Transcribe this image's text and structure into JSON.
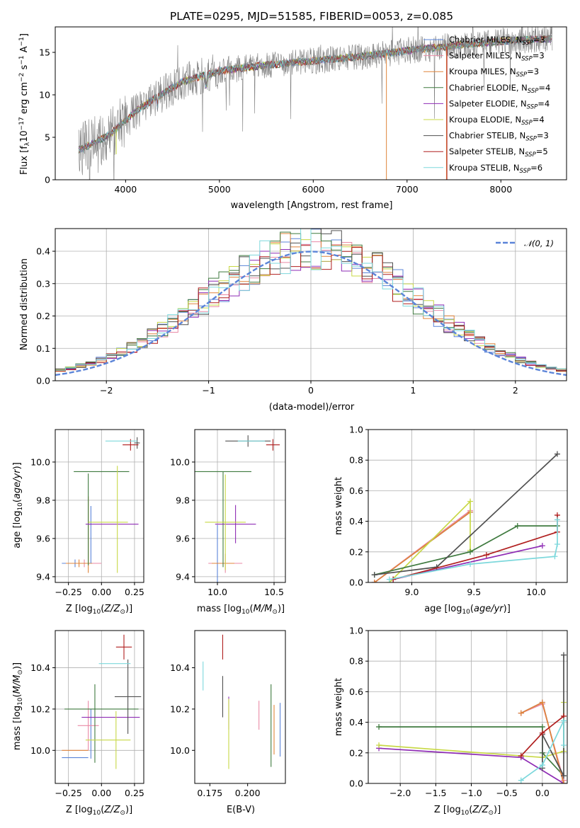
{
  "colors": {
    "Chabrier MILES": "#5b84d8",
    "Salpeter MILES": "#e98aa6",
    "Kroupa MILES": "#e0843a",
    "Chabrier ELODIE": "#3f7a3f",
    "Salpeter ELODIE": "#8e2bb4",
    "Kroupa ELODIE": "#c8d846",
    "Chabrier STELIB": "#505050",
    "Salpeter STELIB": "#b01e1e",
    "Kroupa STELIB": "#7dd8dc",
    "data": "#808080",
    "normal": "#5b84d8"
  },
  "chart_data": [
    {
      "id": "spectrum",
      "type": "line",
      "title": "PLATE=0295, MJD=51585, FIBERID=0053, z=0.085",
      "xlabel": "wavelength [Angstrom, rest frame]",
      "ylabel": "Flux [f_λ10^−17 erg cm^−2 s^−1 A^−1]",
      "xlim": [
        3250,
        8700
      ],
      "ylim": [
        0,
        18
      ],
      "xticks": [
        4000,
        5000,
        6000,
        7000,
        8000
      ],
      "yticks": [
        0,
        5,
        10,
        15
      ],
      "legend_loc": "upper right",
      "continuum_knots": [
        [
          3500,
          3.5
        ],
        [
          3700,
          4.5
        ],
        [
          3850,
          5.5
        ],
        [
          3950,
          6.5
        ],
        [
          4100,
          8.0
        ],
        [
          4300,
          9.5
        ],
        [
          4600,
          11.5
        ],
        [
          5000,
          12.8
        ],
        [
          5500,
          13.5
        ],
        [
          6000,
          14.0
        ],
        [
          6500,
          14.5
        ],
        [
          7000,
          15.2
        ],
        [
          7500,
          15.8
        ],
        [
          8000,
          16.3
        ],
        [
          8500,
          16.6
        ]
      ],
      "series": [
        {
          "name": "Chabrier MILES",
          "nssp": "3"
        },
        {
          "name": "Salpeter MILES",
          "nssp": "3"
        },
        {
          "name": "Kroupa MILES",
          "nssp": "3"
        },
        {
          "name": "Chabrier ELODIE",
          "nssp": "4"
        },
        {
          "name": "Salpeter ELODIE",
          "nssp": "4"
        },
        {
          "name": "Kroupa ELODIE",
          "nssp": "4"
        },
        {
          "name": "Chabrier STELIB",
          "nssp": "3"
        },
        {
          "name": "Salpeter STELIB",
          "nssp": "5"
        },
        {
          "name": "Kroupa STELIB",
          "nssp": "6"
        }
      ]
    },
    {
      "id": "residuals",
      "type": "histogram",
      "xlabel": "(data-model)/error",
      "ylabel": "Normed distribution",
      "xlim": [
        -2.5,
        2.5
      ],
      "ylim": [
        0,
        0.47
      ],
      "xticks": [
        -2,
        -1,
        0,
        1,
        2
      ],
      "yticks": [
        0.0,
        0.1,
        0.2,
        0.3,
        0.4
      ],
      "grid": true,
      "bin_width": 0.1,
      "reference_label": "N(0,1)",
      "legend_loc": "upper right"
    },
    {
      "id": "age_vs_Z",
      "type": "errorbar",
      "xlabel": "Z [log10(Z/Z⊙)]",
      "ylabel": "age [log10(age/yr)]",
      "xlim": [
        -0.35,
        0.32
      ],
      "ylim": [
        9.37,
        10.17
      ],
      "xticks": [
        -0.25,
        0.0,
        0.25
      ],
      "yticks": [
        9.4,
        9.6,
        9.8,
        10.0
      ],
      "grid": true,
      "points": [
        {
          "s": "Chabrier MILES",
          "x": -0.2,
          "y": 9.47,
          "xerr": 0.1,
          "yerr": 0.02
        },
        {
          "s": "Salpeter MILES",
          "x": -0.13,
          "y": 9.47,
          "xerr": 0.13,
          "yerr": 0.02
        },
        {
          "s": "Kroupa MILES",
          "x": -0.17,
          "y": 9.47,
          "xerr": 0.1,
          "yerr": 0.02
        },
        {
          "s": "Chabrier MILES",
          "x": -0.08,
          "y": 9.62,
          "xerr": 0.0,
          "yerr": 0.15
        },
        {
          "s": "Kroupa MILES",
          "x": -0.1,
          "y": 9.62,
          "xerr": 0.0,
          "yerr": 0.2
        },
        {
          "s": "Chabrier ELODIE",
          "x": 0.0,
          "y": 9.95,
          "xerr": 0.21,
          "yerr": 0.0
        },
        {
          "s": "Chabrier ELODIE",
          "x": -0.1,
          "y": 9.7,
          "xerr": 0.0,
          "yerr": 0.24
        },
        {
          "s": "Salpeter ELODIE",
          "x": 0.08,
          "y": 9.675,
          "xerr": 0.2,
          "yerr": 0.0
        },
        {
          "s": "Kroupa ELODIE",
          "x": 0.05,
          "y": 9.685,
          "xerr": 0.15,
          "yerr": 0.0
        },
        {
          "s": "Kroupa ELODIE",
          "x": 0.12,
          "y": 9.7,
          "xerr": 0.0,
          "yerr": 0.28
        },
        {
          "s": "Chabrier STELIB",
          "x": 0.27,
          "y": 10.1,
          "xerr": 0.02,
          "yerr": 0.03
        },
        {
          "s": "Salpeter STELIB",
          "x": 0.22,
          "y": 10.09,
          "xerr": 0.06,
          "yerr": 0.03
        },
        {
          "s": "Kroupa STELIB",
          "x": 0.15,
          "y": 10.11,
          "xerr": 0.12,
          "yerr": 0.0
        }
      ]
    },
    {
      "id": "age_vs_mass",
      "type": "errorbar",
      "xlabel": "mass [log10(M/M⊙)]",
      "ylabel": "",
      "xlim": [
        9.8,
        10.6
      ],
      "ylim": [
        9.37,
        10.17
      ],
      "xticks": [
        10.0,
        10.5
      ],
      "yticks": [
        9.4,
        9.6,
        9.8,
        10.0
      ],
      "grid": true,
      "points": [
        {
          "s": "Chabrier MILES",
          "x": 10.0,
          "y": 9.47,
          "xerr": 0.0,
          "yerr": 0.2
        },
        {
          "s": "Salpeter MILES",
          "x": 10.07,
          "y": 9.47,
          "xerr": 0.15,
          "yerr": 0.05
        },
        {
          "s": "Kroupa MILES",
          "x": 10.05,
          "y": 9.47,
          "xerr": 0.1,
          "yerr": 0.0
        },
        {
          "s": "Chabrier ELODIE",
          "x": 10.05,
          "y": 9.95,
          "xerr": 0.25,
          "yerr": 0.0
        },
        {
          "s": "Chabrier ELODIE",
          "x": 10.05,
          "y": 9.7,
          "xerr": 0.0,
          "yerr": 0.25
        },
        {
          "s": "Salpeter ELODIE",
          "x": 10.16,
          "y": 9.675,
          "xerr": 0.18,
          "yerr": 0.1
        },
        {
          "s": "Kroupa ELODIE",
          "x": 10.07,
          "y": 9.685,
          "xerr": 0.18,
          "yerr": 0.25
        },
        {
          "s": "Chabrier STELIB",
          "x": 10.27,
          "y": 10.11,
          "xerr": 0.2,
          "yerr": 0.03
        },
        {
          "s": "Salpeter STELIB",
          "x": 10.49,
          "y": 10.09,
          "xerr": 0.06,
          "yerr": 0.03
        },
        {
          "s": "Kroupa STELIB",
          "x": 10.3,
          "y": 10.11,
          "xerr": 0.12,
          "yerr": 0.0
        }
      ]
    },
    {
      "id": "weight_vs_age",
      "type": "line",
      "xlabel": "age [log10(age/yr)]",
      "ylabel": "mass weight",
      "xlim": [
        8.65,
        10.25
      ],
      "ylim": [
        0,
        1.0
      ],
      "xticks": [
        9.0,
        9.5,
        10.0
      ],
      "yticks": [
        0.0,
        0.2,
        0.4,
        0.6,
        0.8,
        1.0
      ],
      "grid": true,
      "series": [
        {
          "s": "Chabrier MILES",
          "x": [
            8.7,
            9.47
          ],
          "y": [
            0.0,
            0.46
          ]
        },
        {
          "s": "Salpeter MILES",
          "x": [
            8.7,
            9.47
          ],
          "y": [
            0.0,
            0.47
          ]
        },
        {
          "s": "Kroupa MILES",
          "x": [
            8.7,
            9.47
          ],
          "y": [
            0.0,
            0.46
          ]
        },
        {
          "s": "Kroupa ELODIE",
          "x": [
            8.82,
            9.47,
            9.47
          ],
          "y": [
            0.0,
            0.53,
            0.21
          ]
        },
        {
          "s": "Chabrier ELODIE",
          "x": [
            8.7,
            9.47,
            9.85,
            10.17
          ],
          "y": [
            0.05,
            0.2,
            0.37,
            0.37
          ]
        },
        {
          "s": "Salpeter ELODIE",
          "x": [
            8.85,
            10.05
          ],
          "y": [
            0.02,
            0.24
          ]
        },
        {
          "s": "Chabrier STELIB",
          "x": [
            8.7,
            9.2,
            10.17
          ],
          "y": [
            0.05,
            0.1,
            0.84
          ]
        },
        {
          "s": "Salpeter STELIB",
          "x": [
            8.85,
            9.6,
            10.17,
            10.17
          ],
          "y": [
            0.02,
            0.18,
            0.33,
            0.44
          ]
        },
        {
          "s": "Kroupa STELIB",
          "x": [
            8.82,
            9.47,
            10.15,
            10.17,
            10.17
          ],
          "y": [
            0.02,
            0.12,
            0.17,
            0.25,
            0.41
          ]
        }
      ]
    },
    {
      "id": "mass_vs_Z",
      "type": "errorbar",
      "xlabel": "Z [log10(Z/Z⊙)]",
      "ylabel": "mass [log10(M/M⊙)]",
      "xlim": [
        -0.35,
        0.32
      ],
      "ylim": [
        9.84,
        10.58
      ],
      "xticks": [
        -0.25,
        0.0,
        0.25
      ],
      "yticks": [
        10.0,
        10.2,
        10.4
      ],
      "grid": true,
      "points": [
        {
          "s": "Chabrier MILES",
          "x": -0.2,
          "y": 9.965,
          "xerr": 0.1,
          "yerr": 0.0
        },
        {
          "s": "Chabrier MILES",
          "x": -0.08,
          "y": 10.08,
          "xerr": 0.0,
          "yerr": 0.12
        },
        {
          "s": "Kroupa MILES",
          "x": -0.2,
          "y": 10.0,
          "xerr": 0.1,
          "yerr": 0.0
        },
        {
          "s": "Salpeter MILES",
          "x": -0.1,
          "y": 10.12,
          "xerr": 0.08,
          "yerr": 0.12
        },
        {
          "s": "Chabrier ELODIE",
          "x": 0.0,
          "y": 10.2,
          "xerr": 0.28,
          "yerr": 0.0
        },
        {
          "s": "Chabrier ELODIE",
          "x": -0.05,
          "y": 10.13,
          "xerr": 0.0,
          "yerr": 0.19
        },
        {
          "s": "Salpeter ELODIE",
          "x": 0.07,
          "y": 10.16,
          "xerr": 0.22,
          "yerr": 0.0
        },
        {
          "s": "Kroupa ELODIE",
          "x": 0.05,
          "y": 10.05,
          "xerr": 0.17,
          "yerr": 0.0
        },
        {
          "s": "Kroupa ELODIE",
          "x": 0.11,
          "y": 10.05,
          "xerr": 0.0,
          "yerr": 0.14
        },
        {
          "s": "Chabrier STELIB",
          "x": 0.2,
          "y": 10.26,
          "xerr": 0.1,
          "yerr": 0.18
        },
        {
          "s": "Salpeter STELIB",
          "x": 0.17,
          "y": 10.5,
          "xerr": 0.06,
          "yerr": 0.06
        },
        {
          "s": "Kroupa STELIB",
          "x": 0.1,
          "y": 10.42,
          "xerr": 0.12,
          "yerr": 0.0
        }
      ]
    },
    {
      "id": "mass_vs_ebv",
      "type": "errorbar",
      "xlabel": "E(B-V)",
      "ylabel": "",
      "xlim": [
        0.165,
        0.225
      ],
      "ylim": [
        9.84,
        10.58
      ],
      "xticks": [
        0.175,
        0.2
      ],
      "yticks": [
        10.0,
        10.2,
        10.4
      ],
      "grid": false,
      "points": [
        {
          "s": "Kroupa STELIB",
          "x": 0.1705,
          "y": 10.36,
          "xerr": 0.0,
          "yerr": 0.07
        },
        {
          "s": "Salpeter STELIB",
          "x": 0.1835,
          "y": 10.5,
          "xerr": 0.0,
          "yerr": 0.06
        },
        {
          "s": "Chabrier STELIB",
          "x": 0.1835,
          "y": 10.26,
          "xerr": 0.0,
          "yerr": 0.1
        },
        {
          "s": "Salpeter ELODIE",
          "x": 0.1875,
          "y": 10.18,
          "xerr": 0.0,
          "yerr": 0.08
        },
        {
          "s": "Kroupa ELODIE",
          "x": 0.1875,
          "y": 10.08,
          "xerr": 0.0,
          "yerr": 0.17
        },
        {
          "s": "Salpeter MILES",
          "x": 0.2075,
          "y": 10.17,
          "xerr": 0.0,
          "yerr": 0.07
        },
        {
          "s": "Chabrier ELODIE",
          "x": 0.2155,
          "y": 10.12,
          "xerr": 0.0,
          "yerr": 0.2
        },
        {
          "s": "Kroupa MILES",
          "x": 0.2175,
          "y": 10.1,
          "xerr": 0.0,
          "yerr": 0.12
        },
        {
          "s": "Chabrier MILES",
          "x": 0.2215,
          "y": 10.1,
          "xerr": 0.0,
          "yerr": 0.13
        }
      ]
    },
    {
      "id": "weight_vs_Z",
      "type": "line",
      "xlabel": "Z [log10(Z/Z⊙)]",
      "ylabel": "mass weight",
      "xlim": [
        -2.45,
        0.35
      ],
      "ylim": [
        0,
        1.0
      ],
      "xticks": [
        -2.0,
        -1.5,
        -1.0,
        -0.5,
        0.0
      ],
      "yticks": [
        0.0,
        0.2,
        0.4,
        0.6,
        0.8,
        1.0
      ],
      "grid": true,
      "series": [
        {
          "s": "Chabrier ELODIE",
          "x": [
            -2.3,
            0.0,
            0.0,
            0.3
          ],
          "y": [
            0.37,
            0.37,
            0.2,
            0.05
          ]
        },
        {
          "s": "Salpeter ELODIE",
          "x": [
            -2.3,
            -0.3,
            0.3
          ],
          "y": [
            0.23,
            0.17,
            0.0
          ]
        },
        {
          "s": "Kroupa ELODIE",
          "x": [
            -2.3,
            0.0,
            0.3,
            0.3
          ],
          "y": [
            0.25,
            0.17,
            0.21,
            0.53
          ]
        },
        {
          "s": "Chabrier MILES",
          "x": [
            -0.3,
            0.0,
            0.3
          ],
          "y": [
            0.46,
            0.53,
            0.0
          ]
        },
        {
          "s": "Salpeter MILES",
          "x": [
            -0.3,
            0.0,
            0.3
          ],
          "y": [
            0.46,
            0.52,
            0.02
          ]
        },
        {
          "s": "Kroupa MILES",
          "x": [
            -0.3,
            0.0,
            0.3
          ],
          "y": [
            0.46,
            0.53,
            0.0
          ]
        },
        {
          "s": "Chabrier STELIB",
          "x": [
            0.0,
            0.0,
            0.3,
            0.3
          ],
          "y": [
            0.1,
            0.32,
            0.05,
            0.84
          ]
        },
        {
          "s": "Salpeter STELIB",
          "x": [
            -0.3,
            0.0,
            0.3
          ],
          "y": [
            0.18,
            0.33,
            0.44
          ]
        },
        {
          "s": "Kroupa STELIB",
          "x": [
            -0.3,
            0.0,
            0.3,
            0.3
          ],
          "y": [
            0.02,
            0.12,
            0.41,
            0.25
          ]
        }
      ]
    }
  ]
}
